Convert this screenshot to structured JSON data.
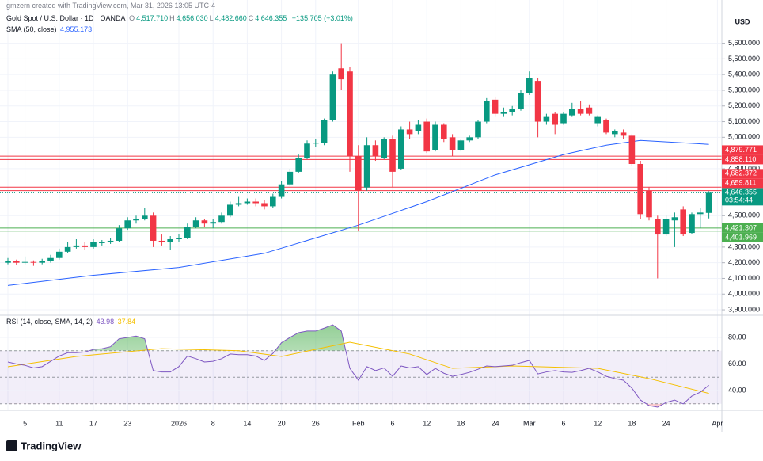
{
  "chart_data": {
    "type": "candlestick",
    "credit": "gmzern created with TradingView.com, Mar 31, 2026 13:05 UTC-4",
    "symbol": "Gold Spot / U.S. Dollar · 1D · OANDA",
    "ohlc_letters": [
      "O",
      "H",
      "L",
      "C"
    ],
    "ohlc_texts": [
      "4,517.710",
      "4,656.030",
      "4,482.660",
      "4,646.355"
    ],
    "change_text": "+135.705 (+3.01%)",
    "currency": "USD",
    "brand": "TradingView",
    "up_color": "#089981",
    "down_color": "#f23645",
    "categories": [
      "",
      null,
      "5",
      null,
      null,
      null,
      "11",
      null,
      null,
      null,
      "17",
      null,
      null,
      null,
      "23",
      null,
      null,
      null,
      null,
      null,
      "2026",
      null,
      null,
      null,
      "8",
      null,
      null,
      null,
      "14",
      null,
      null,
      null,
      "20",
      null,
      null,
      null,
      "26",
      null,
      null,
      null,
      null,
      "Feb",
      null,
      null,
      null,
      "6",
      null,
      null,
      null,
      "12",
      null,
      null,
      null,
      "18",
      null,
      null,
      null,
      "24",
      null,
      null,
      null,
      "Mar",
      null,
      null,
      null,
      "6",
      null,
      null,
      null,
      "12",
      null,
      null,
      null,
      "18",
      null,
      null,
      null,
      "24",
      null,
      null,
      null,
      null,
      null,
      "Apr"
    ],
    "open": [
      4200,
      4210,
      4200,
      4205,
      4200,
      4210,
      4230,
      4270,
      4300,
      4310,
      4300,
      4330,
      4330,
      4340,
      4420,
      4470,
      4480,
      4500,
      4340,
      4330,
      4350,
      4360,
      4430,
      4470,
      4450,
      4460,
      4500,
      4570,
      4580,
      4590,
      4580,
      4560,
      4620,
      4700,
      4780,
      4870,
      4960,
      4965,
      5110,
      5440,
      5420,
      4880,
      4680,
      4950,
      4870,
      4990,
      4800,
      5050,
      5040,
      5100,
      4920,
      5080,
      5000,
      4920,
      4980,
      5000,
      5100,
      5240,
      5150,
      5160,
      5180,
      5280,
      5360,
      5100,
      5150,
      5090,
      5140,
      5180,
      5190,
      5090,
      5110,
      5020,
      5030,
      5010,
      4830,
      4660,
      4480,
      4380,
      4470,
      4540,
      4390,
      4510,
      4517.71,
      null
    ],
    "high": [
      4230,
      4220,
      4240,
      4215,
      4225,
      4250,
      4290,
      4330,
      4350,
      4330,
      4350,
      4345,
      4360,
      4440,
      4490,
      4500,
      4550,
      4520,
      4380,
      4370,
      4380,
      4450,
      4490,
      4480,
      4480,
      4520,
      4590,
      4620,
      4610,
      4610,
      4600,
      4640,
      4720,
      4800,
      4890,
      4980,
      4990,
      5120,
      5420,
      5600,
      5450,
      4950,
      5000,
      4980,
      5000,
      5010,
      5070,
      5100,
      5110,
      5120,
      5100,
      5090,
      5020,
      4990,
      5010,
      5110,
      5250,
      5260,
      5190,
      5200,
      5300,
      5420,
      5380,
      5150,
      5160,
      5160,
      5220,
      5230,
      5210,
      5140,
      5120,
      5050,
      5050,
      5020,
      4850,
      4680,
      4500,
      4500,
      4520,
      4560,
      4520,
      4550,
      4656.03,
      null
    ],
    "low": [
      4190,
      4185,
      4190,
      4180,
      4190,
      4200,
      4220,
      4260,
      4290,
      4280,
      4290,
      4310,
      4320,
      4330,
      4410,
      4450,
      4470,
      4300,
      4310,
      4280,
      4330,
      4350,
      4420,
      4430,
      4420,
      4450,
      4490,
      4560,
      4570,
      4560,
      4540,
      4550,
      4610,
      4690,
      4770,
      4860,
      4940,
      4950,
      5100,
      5300,
      4780,
      4400,
      4660,
      4850,
      4860,
      4680,
      4790,
      4990,
      5020,
      4900,
      4910,
      4970,
      4880,
      4910,
      4970,
      4990,
      5090,
      5130,
      5130,
      5140,
      5170,
      5270,
      5000,
      5080,
      5020,
      5080,
      5130,
      5140,
      5140,
      5070,
      5020,
      5000,
      4990,
      4820,
      4480,
      4470,
      4100,
      4370,
      4300,
      4370,
      4380,
      4420,
      4482.66,
      null
    ],
    "close": [
      4210,
      4200,
      4205,
      4200,
      4210,
      4230,
      4270,
      4300,
      4310,
      4300,
      4330,
      4330,
      4340,
      4420,
      4470,
      4480,
      4500,
      4340,
      4330,
      4350,
      4360,
      4430,
      4470,
      4450,
      4460,
      4500,
      4570,
      4580,
      4590,
      4580,
      4560,
      4620,
      4700,
      4780,
      4870,
      4960,
      4965,
      5110,
      5400,
      5370,
      4880,
      4660,
      4950,
      4880,
      4990,
      4780,
      5050,
      5020,
      5080,
      4910,
      5080,
      4990,
      4920,
      4980,
      5000,
      5100,
      5230,
      5150,
      5160,
      5180,
      5280,
      5380,
      5100,
      5130,
      5080,
      5150,
      5180,
      5150,
      5150,
      5130,
      5030,
      5040,
      5010,
      4830,
      4510,
      4490,
      4380,
      4480,
      4490,
      4380,
      4510,
      4520,
      4646.355,
      null
    ],
    "ylim": [
      3875,
      5795
    ],
    "yticks": [
      {
        "value": 5600,
        "label": "5,600.000"
      },
      {
        "value": 5500,
        "label": "5,500.000"
      },
      {
        "value": 5400,
        "label": "5,400.000"
      },
      {
        "value": 5300,
        "label": "5,300.000"
      },
      {
        "value": 5200,
        "label": "5,200.000"
      },
      {
        "value": 5100,
        "label": "5,100.000"
      },
      {
        "value": 5000,
        "label": "5,000.000"
      },
      {
        "value": 4800,
        "label": "4,800.000"
      },
      {
        "value": 4500,
        "label": "4,500.000"
      },
      {
        "value": 4300,
        "label": "4,300.000"
      },
      {
        "value": 4200,
        "label": "4,200.000"
      },
      {
        "value": 4100,
        "label": "4,100.000"
      },
      {
        "value": 4000,
        "label": "4,000.000"
      },
      {
        "value": 3900,
        "label": "3,900.000"
      }
    ],
    "grid": true,
    "sma": {
      "name": "SMA (50, close)",
      "value_text": "4,955.173",
      "color": "#2962ff",
      "x": [
        0,
        10,
        20,
        30,
        41,
        49,
        57,
        65,
        70,
        74,
        82
      ],
      "values": [
        4055,
        4120,
        4170,
        4260,
        4440,
        4590,
        4760,
        4890,
        4950,
        4980,
        4955.173
      ]
    },
    "hlines": [
      {
        "value": 4879.771,
        "label": "4,879.771",
        "color": "#f23645"
      },
      {
        "value": 4858.11,
        "label": "4,858.110",
        "color": "#f23645"
      },
      {
        "value": 4682.372,
        "label": "4,682.372",
        "color": "#f23645"
      },
      {
        "value": 4659.811,
        "label": "4,659.811",
        "color": "#f23645"
      },
      {
        "value": 4421.307,
        "label": "4,421.307",
        "color": "#4caf50"
      },
      {
        "value": 4401.969,
        "label": "4,401.969",
        "color": "#4caf50"
      }
    ],
    "last_price": {
      "value": 4646.355,
      "label": "4,646.355",
      "countdown": "03:54:44",
      "color": "#089981"
    },
    "rsi": {
      "name": "RSI (14, close, SMA, 14, 2)",
      "value_text": "43.98",
      "sma_text": "37.84",
      "color": "#7e57c2",
      "sma_color": "#f5c000",
      "values": [
        61.5,
        60,
        59,
        57,
        58,
        62,
        66,
        68.5,
        68.5,
        69,
        71,
        71.5,
        73,
        79,
        80,
        81,
        79,
        55,
        54,
        54,
        58,
        66,
        64,
        61.5,
        62,
        64,
        67.5,
        67,
        67,
        66,
        62.7,
        68,
        76,
        80,
        83.6,
        84.8,
        84.8,
        87,
        89.5,
        84.8,
        56.7,
        47.8,
        58,
        55,
        57,
        50.7,
        58.5,
        57,
        58,
        52,
        56.7,
        53,
        50.7,
        52,
        53.7,
        56,
        58.5,
        58,
        58.5,
        59,
        61,
        62.7,
        52.5,
        54,
        55,
        54,
        53.7,
        55,
        56.7,
        54,
        50.7,
        49,
        47.8,
        41.8,
        32.8,
        28.7,
        27.5,
        31,
        32.8,
        29.9,
        35.8,
        38.8,
        43.98,
        null
      ],
      "sma_x": [
        0,
        8,
        18,
        27,
        32,
        40,
        47,
        52,
        59,
        69,
        75,
        82
      ],
      "sma_values": [
        57.9,
        65.7,
        71.6,
        70,
        65.7,
        76.4,
        67.5,
        56.7,
        58.5,
        56.7,
        49,
        37.84
      ],
      "ylim": [
        26.3,
        95.5
      ],
      "yticks": [
        {
          "value": 80,
          "label": "80.00"
        },
        {
          "value": 60,
          "label": "60.00"
        },
        {
          "value": 40,
          "label": "40.00"
        }
      ],
      "band": [
        70,
        30
      ],
      "midline": 50
    }
  }
}
